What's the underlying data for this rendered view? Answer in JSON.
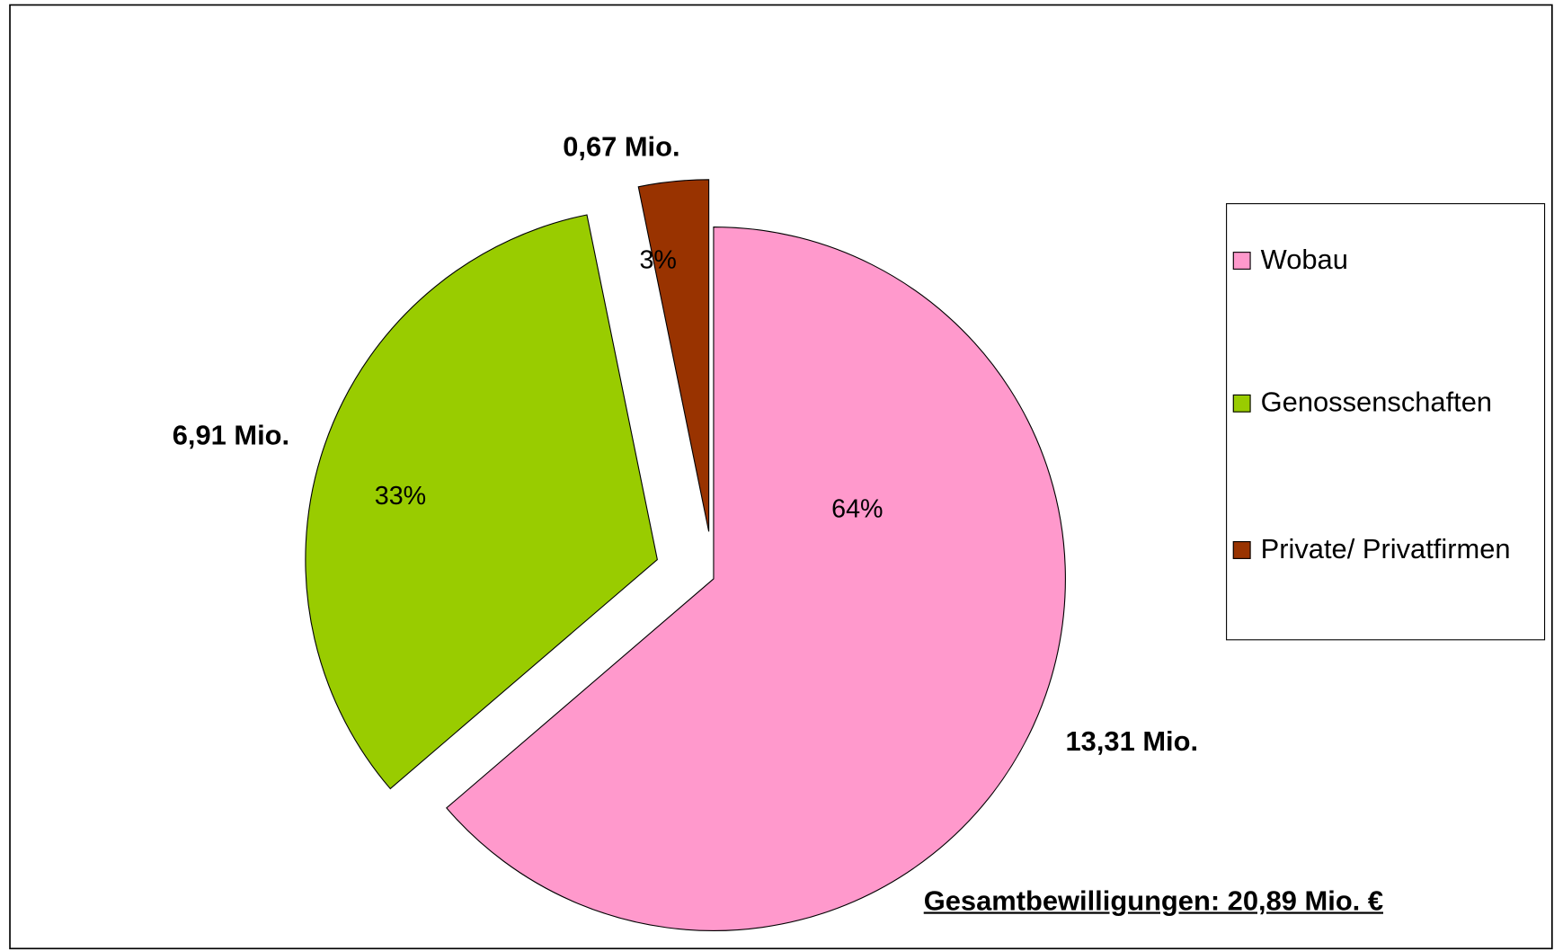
{
  "chart_data": {
    "type": "pie",
    "categories": [
      "Wobau",
      "Genossenschaften",
      "Private/ Privatfirmen"
    ],
    "values": [
      13.31,
      6.91,
      0.67
    ],
    "value_labels": [
      "13,31 Mio.",
      "6,91 Mio.",
      "0,67 Mio."
    ],
    "percentages": [
      64,
      33,
      3
    ],
    "percentage_labels": [
      "64%",
      "33%",
      "3%"
    ],
    "colors": [
      "#ff99cc",
      "#99cc00",
      "#993300"
    ],
    "legend": "right",
    "annotation": "Gesamtbewilligungen: 20,89 Mio. €"
  }
}
